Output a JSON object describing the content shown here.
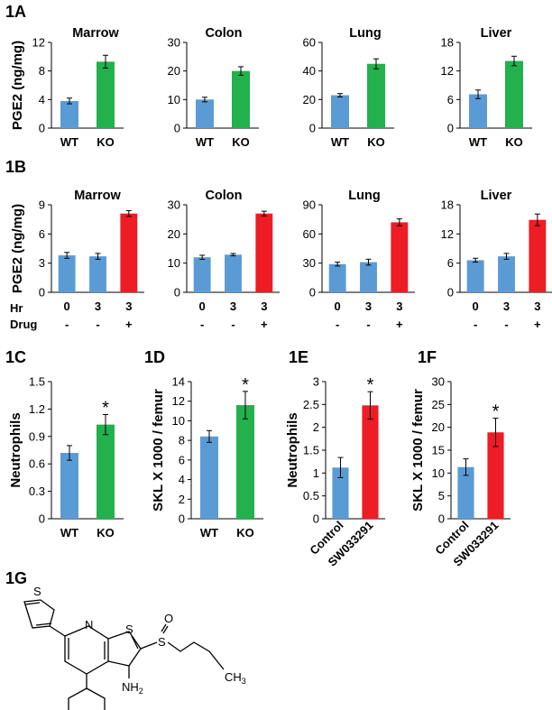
{
  "colors": {
    "wt": "#5b9bd5",
    "ko": "#22b14c",
    "drug": "#ee1c25",
    "control": "#5b9bd5",
    "sw": "#ee1c25"
  },
  "panel_labels": {
    "a": "1A",
    "b": "1B",
    "c": "1C",
    "d": "1D",
    "e": "1E",
    "f": "1F",
    "g": "1G"
  },
  "rows": {
    "hr_label": "Hr",
    "drug_label": "Drug"
  },
  "chart_data": [
    {
      "id": "A1",
      "panel": "1A",
      "type": "bar",
      "title": "Marrow",
      "ylabel": "PGE2 (ng/mg)",
      "ylim": [
        0,
        12
      ],
      "yticks": [
        "0",
        "4",
        "8",
        "12"
      ],
      "categories": [
        "WT",
        "KO"
      ],
      "values": [
        3.8,
        9.3
      ],
      "errors": [
        0.4,
        0.9
      ],
      "colors": [
        "wt",
        "ko"
      ]
    },
    {
      "id": "A2",
      "panel": "1A",
      "type": "bar",
      "title": "Colon",
      "ylabel": "",
      "ylim": [
        0,
        30
      ],
      "yticks": [
        "0",
        "10",
        "20",
        "30"
      ],
      "categories": [
        "WT",
        "KO"
      ],
      "values": [
        10,
        20
      ],
      "errors": [
        0.8,
        1.5
      ],
      "colors": [
        "wt",
        "ko"
      ]
    },
    {
      "id": "A3",
      "panel": "1A",
      "type": "bar",
      "title": "Lung",
      "ylabel": "",
      "ylim": [
        0,
        60
      ],
      "yticks": [
        "0",
        "20",
        "40",
        "60"
      ],
      "categories": [
        "WT",
        "KO"
      ],
      "values": [
        23,
        45
      ],
      "errors": [
        1.2,
        3.5
      ],
      "colors": [
        "wt",
        "ko"
      ]
    },
    {
      "id": "A4",
      "panel": "1A",
      "type": "bar",
      "title": "Liver",
      "ylabel": "",
      "ylim": [
        0,
        18
      ],
      "yticks": [
        "0",
        "6",
        "12",
        "18"
      ],
      "categories": [
        "WT",
        "KO"
      ],
      "values": [
        7.1,
        14.1
      ],
      "errors": [
        0.9,
        1.0
      ],
      "colors": [
        "wt",
        "ko"
      ]
    },
    {
      "id": "B1",
      "panel": "1B",
      "type": "bar",
      "title": "Marrow",
      "ylabel": "PGE2 (ng/mg)",
      "ylim": [
        0,
        9
      ],
      "yticks": [
        "0",
        "3",
        "6",
        "9"
      ],
      "categories": [
        "0",
        "3",
        "3"
      ],
      "drug": [
        "-",
        "-",
        "+"
      ],
      "values": [
        3.8,
        3.7,
        8.1
      ],
      "errors": [
        0.3,
        0.3,
        0.3
      ],
      "colors": [
        "wt",
        "wt",
        "drug"
      ]
    },
    {
      "id": "B2",
      "panel": "1B",
      "type": "bar",
      "title": "Colon",
      "ylabel": "",
      "ylim": [
        0,
        30
      ],
      "yticks": [
        "0",
        "10",
        "20",
        "30"
      ],
      "categories": [
        "0",
        "3",
        "3"
      ],
      "drug": [
        "-",
        "-",
        "+"
      ],
      "values": [
        12,
        12.9,
        27
      ],
      "errors": [
        0.7,
        0.4,
        0.8
      ],
      "colors": [
        "wt",
        "wt",
        "drug"
      ]
    },
    {
      "id": "B3",
      "panel": "1B",
      "type": "bar",
      "title": "Lung",
      "ylabel": "",
      "ylim": [
        0,
        90
      ],
      "yticks": [
        "0",
        "30",
        "60",
        "90"
      ],
      "categories": [
        "0",
        "3",
        "3"
      ],
      "drug": [
        "-",
        "-",
        "+"
      ],
      "values": [
        29,
        31,
        72
      ],
      "errors": [
        2,
        3,
        3.5
      ],
      "colors": [
        "wt",
        "wt",
        "drug"
      ]
    },
    {
      "id": "B4",
      "panel": "1B",
      "type": "bar",
      "title": "Liver",
      "ylabel": "",
      "ylim": [
        0,
        18
      ],
      "yticks": [
        "0",
        "6",
        "12",
        "18"
      ],
      "categories": [
        "0",
        "3",
        "3"
      ],
      "drug": [
        "-",
        "-",
        "+"
      ],
      "values": [
        6.6,
        7.4,
        14.9
      ],
      "errors": [
        0.4,
        0.6,
        1.2
      ],
      "colors": [
        "wt",
        "wt",
        "drug"
      ]
    },
    {
      "id": "C",
      "panel": "1C",
      "type": "bar",
      "title": "",
      "ylabel": "Neutrophils",
      "ylim": [
        0,
        1.5
      ],
      "yticks": [
        "0",
        "0.3",
        "0.6",
        "0.9",
        "1.2",
        "1.5"
      ],
      "categories": [
        "WT",
        "KO"
      ],
      "values": [
        0.72,
        1.03
      ],
      "errors": [
        0.08,
        0.11
      ],
      "colors": [
        "wt",
        "ko"
      ],
      "significance": [
        false,
        true
      ]
    },
    {
      "id": "D",
      "panel": "1D",
      "type": "bar",
      "title": "",
      "ylabel": "SKL X 1000 / femur",
      "ylim": [
        0,
        14
      ],
      "yticks": [
        "0",
        "2",
        "4",
        "6",
        "8",
        "10",
        "12",
        "14"
      ],
      "categories": [
        "WT",
        "KO"
      ],
      "values": [
        8.4,
        11.6
      ],
      "errors": [
        0.6,
        1.4
      ],
      "colors": [
        "wt",
        "ko"
      ],
      "significance": [
        false,
        true
      ]
    },
    {
      "id": "E",
      "panel": "1E",
      "type": "bar",
      "title": "",
      "ylabel": "Neutrophils",
      "ylim": [
        0,
        3
      ],
      "yticks": [
        "0",
        "0.5",
        "1",
        "1.5",
        "2",
        "2.5",
        "3"
      ],
      "categories": [
        "Control",
        "SW033291"
      ],
      "values": [
        1.12,
        2.48
      ],
      "errors": [
        0.22,
        0.3
      ],
      "colors": [
        "control",
        "sw"
      ],
      "significance": [
        false,
        true
      ]
    },
    {
      "id": "F",
      "panel": "1F",
      "type": "bar",
      "title": "",
      "ylabel": "SKL X 1000 / femur",
      "ylim": [
        0,
        30
      ],
      "yticks": [
        "0",
        "5",
        "10",
        "15",
        "20",
        "25",
        "30"
      ],
      "categories": [
        "Control",
        "SW033291"
      ],
      "values": [
        11.3,
        18.9
      ],
      "errors": [
        1.8,
        3.1
      ],
      "colors": [
        "control",
        "sw"
      ],
      "significance": [
        false,
        true
      ]
    }
  ],
  "molecule": {
    "sulfoxide_s": "S",
    "sulfoxide_o": "O",
    "thiophene_s": "S",
    "ring_s": "S",
    "ring_n": "N",
    "amine": "NH",
    "amine_sub": "2",
    "methyl": "CH",
    "methyl_sub": "3"
  }
}
